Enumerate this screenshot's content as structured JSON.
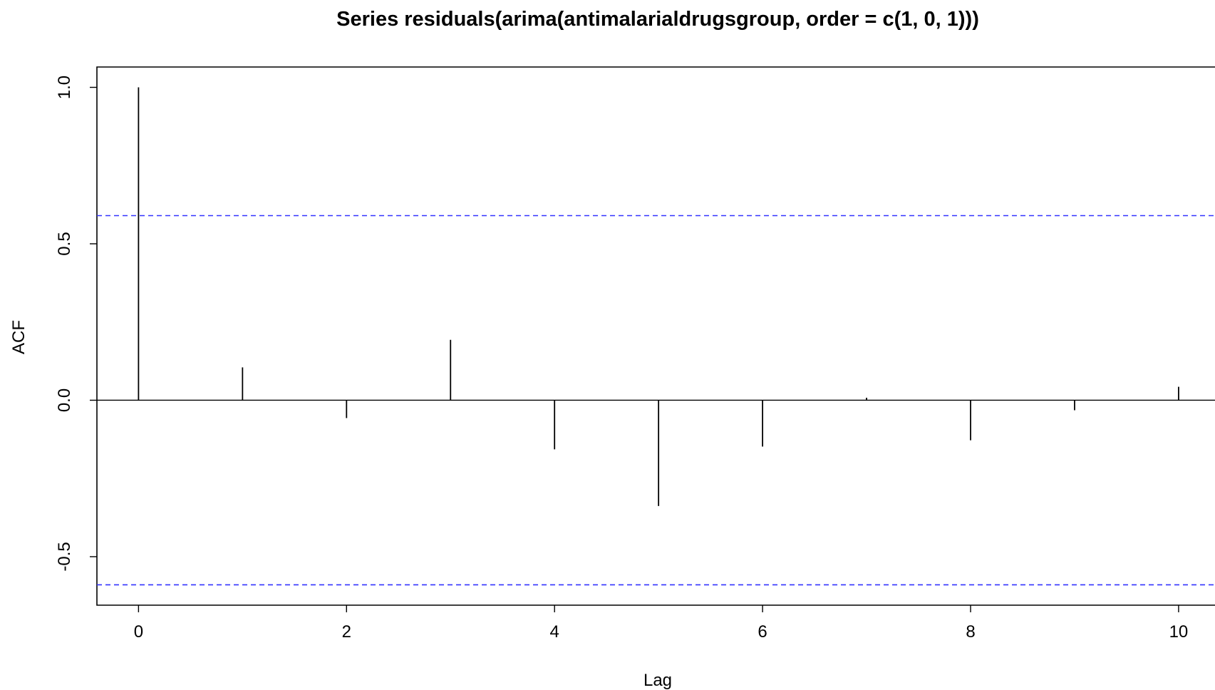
{
  "chart_data": {
    "type": "bar",
    "title": "Series  residuals(arima(antimalarialdrugsgroup, order = c(1, 0, 1)))",
    "xlabel": "Lag",
    "ylabel": "ACF",
    "x": [
      0,
      1,
      2,
      3,
      4,
      5,
      6,
      7,
      8,
      9,
      10
    ],
    "values": [
      1.0,
      0.105,
      -0.057,
      0.193,
      -0.157,
      -0.338,
      -0.148,
      0.008,
      -0.128,
      -0.032,
      0.043
    ],
    "xlim": [
      -0.4,
      10.35
    ],
    "ylim": [
      -0.655,
      1.065
    ],
    "x_ticks": [
      "0",
      "2",
      "4",
      "6",
      "8",
      "10"
    ],
    "x_tick_values": [
      0,
      2,
      4,
      6,
      8,
      10
    ],
    "y_ticks": [
      "-0.5",
      "0.0",
      "0.5",
      "1.0"
    ],
    "y_tick_values": [
      -0.5,
      0.0,
      0.5,
      1.0
    ],
    "confidence_bound": 0.59,
    "confidence_color": "#3333ff",
    "bar_color": "#000000",
    "grid": false,
    "legend": "none"
  }
}
